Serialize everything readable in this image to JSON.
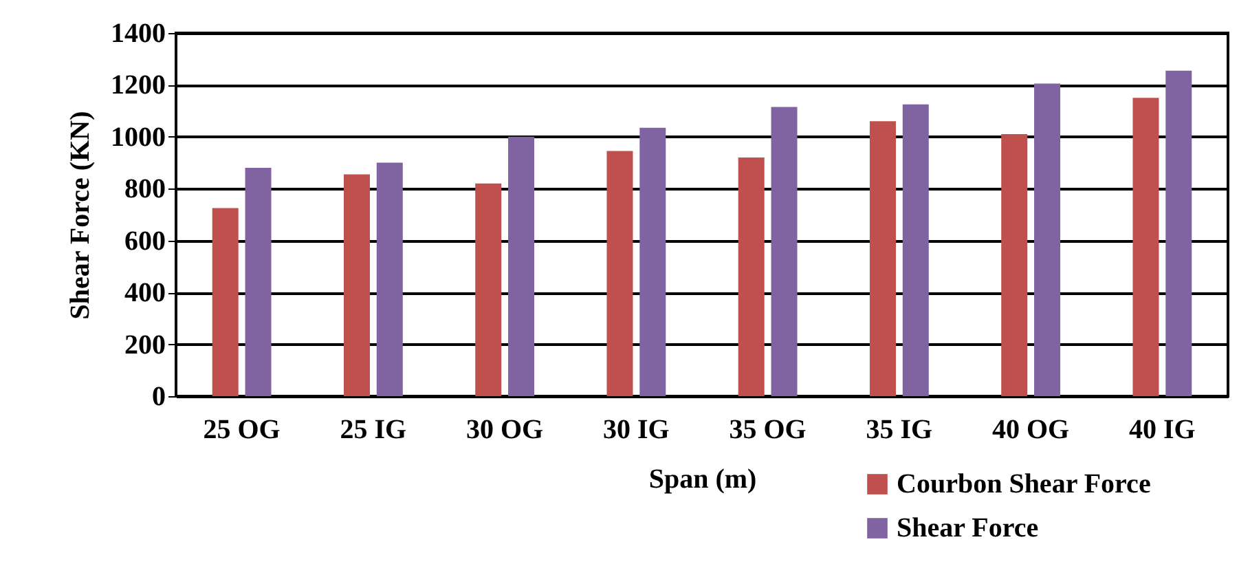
{
  "chart_data": {
    "type": "bar",
    "xlabel": "Span (m)",
    "ylabel": "Shear Force (KN)",
    "categories": [
      "25 OG",
      "25 IG",
      "30 OG",
      "30 IG",
      "35 OG",
      "35 IG",
      "40 OG",
      "40 IG"
    ],
    "series": [
      {
        "name": "Courbon Shear Force",
        "color": "#c0504d",
        "values": [
          725,
          855,
          820,
          945,
          920,
          1060,
          1010,
          1150
        ]
      },
      {
        "name": "Shear Force",
        "color": "#8064a2",
        "values": [
          880,
          900,
          1000,
          1035,
          1115,
          1125,
          1205,
          1255
        ]
      }
    ],
    "ylim": [
      0,
      1400
    ],
    "yticks": [
      0,
      200,
      400,
      600,
      800,
      1000,
      1200,
      1400
    ],
    "grid": "y",
    "legend": "bottom right"
  }
}
